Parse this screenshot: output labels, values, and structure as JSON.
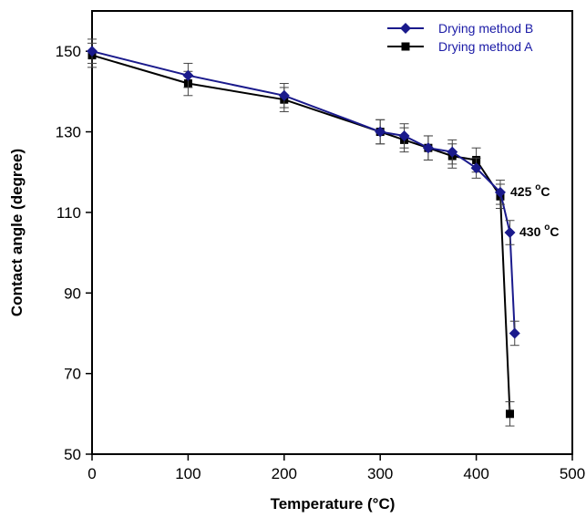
{
  "chart_data": {
    "type": "line",
    "xlabel": "Temperature (°C)",
    "ylabel": "Contact angle (degree)",
    "xlim": [
      0,
      500
    ],
    "ylim": [
      50,
      160
    ],
    "x_ticks": [
      "0",
      "100",
      "200",
      "300",
      "400",
      "500"
    ],
    "y_ticks": [
      "50",
      "70",
      "90",
      "110",
      "130",
      "150"
    ],
    "grid": false,
    "legend_position": "top-right",
    "series": [
      {
        "name": "Drying method B",
        "color": "#1a1a8c",
        "marker": "diamond",
        "x": [
          0,
          100,
          200,
          300,
          325,
          350,
          375,
          400,
          425,
          435,
          440
        ],
        "y": [
          150,
          144,
          139,
          130,
          129,
          126,
          125,
          121,
          115,
          105,
          80
        ],
        "error": [
          3,
          3,
          3,
          3,
          3,
          3,
          3,
          2.5,
          3,
          3,
          3
        ]
      },
      {
        "name": "Drying method A",
        "color": "#000000",
        "marker": "square",
        "x": [
          0,
          100,
          200,
          300,
          325,
          350,
          375,
          400,
          425,
          435
        ],
        "y": [
          149,
          142,
          138,
          130,
          128,
          126,
          124,
          123,
          114,
          60
        ],
        "error": [
          3,
          3,
          3,
          3,
          3,
          3,
          3,
          3,
          3,
          3
        ]
      }
    ],
    "annotations": [
      {
        "base": "425 ",
        "sup": "o",
        "tail": "C",
        "x": 425,
        "y": 115
      },
      {
        "base": "430 ",
        "sup": "o",
        "tail": "C",
        "x": 435,
        "y": 105
      }
    ]
  }
}
